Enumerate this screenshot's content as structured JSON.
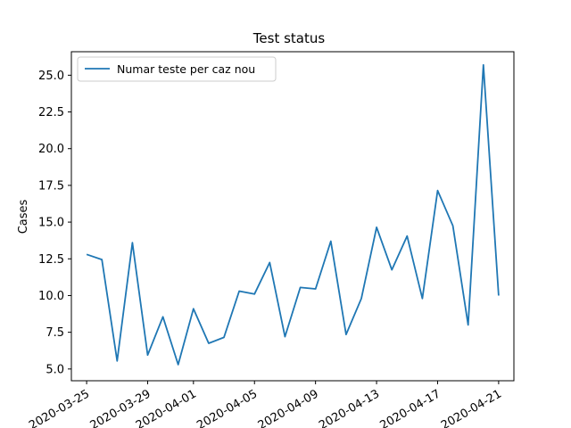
{
  "chart_data": {
    "type": "line",
    "title": "Test status",
    "xlabel": "",
    "ylabel": "Cases",
    "legend_position": "top-left",
    "grid": false,
    "series_color": "#1f77b4",
    "x_ticks": [
      "2020-03-25",
      "2020-03-29",
      "2020-04-01",
      "2020-04-05",
      "2020-04-09",
      "2020-04-13",
      "2020-04-17",
      "2020-04-21"
    ],
    "y_ticks": [
      "5.0",
      "7.5",
      "10.0",
      "12.5",
      "15.0",
      "17.5",
      "20.0",
      "22.5",
      "25.0"
    ],
    "ylim": [
      4.2,
      26.6
    ],
    "xlim": [
      "2020-03-24",
      "2020-04-22"
    ],
    "x": [
      "2020-03-25",
      "2020-03-26",
      "2020-03-27",
      "2020-03-28",
      "2020-03-29",
      "2020-03-30",
      "2020-03-31",
      "2020-04-01",
      "2020-04-02",
      "2020-04-03",
      "2020-04-04",
      "2020-04-05",
      "2020-04-06",
      "2020-04-07",
      "2020-04-08",
      "2020-04-09",
      "2020-04-10",
      "2020-04-11",
      "2020-04-12",
      "2020-04-13",
      "2020-04-14",
      "2020-04-15",
      "2020-04-16",
      "2020-04-17",
      "2020-04-18",
      "2020-04-19",
      "2020-04-20",
      "2020-04-21"
    ],
    "series": [
      {
        "name": "Numar teste per caz nou",
        "values": [
          12.8,
          12.45,
          5.55,
          13.6,
          5.95,
          8.55,
          5.3,
          9.1,
          6.75,
          7.15,
          10.3,
          10.1,
          12.25,
          7.2,
          10.55,
          10.45,
          13.7,
          7.35,
          9.8,
          14.65,
          11.75,
          14.05,
          9.8,
          17.15,
          14.75,
          8.0,
          25.7,
          10.0
        ]
      }
    ]
  }
}
